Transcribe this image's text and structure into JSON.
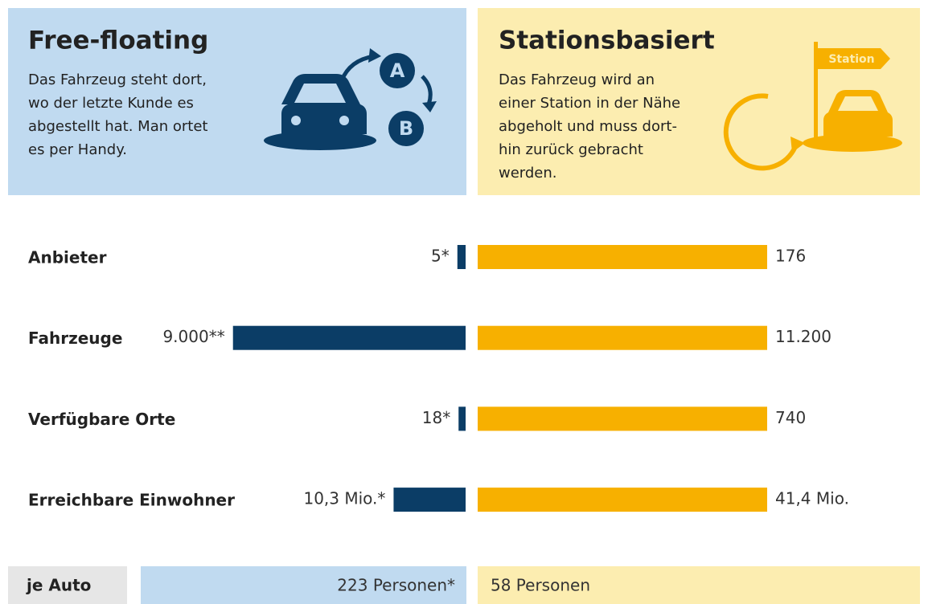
{
  "chart_data": {
    "type": "butterfly",
    "panels": [
      {
        "title": "Free-floating",
        "lines": [
          "Das Fahrzeug steht dort,",
          "wo der letzte Kunde es",
          "abgestellt hat. Man ortet",
          "es per Handy."
        ]
      },
      {
        "title": "Stationsbasiert",
        "lines": [
          "Das Fahrzeug wird an",
          "einer Station in der Nähe",
          "abgeholt und muss dort-",
          "hin zurück gebracht",
          "werden."
        ]
      }
    ],
    "icons": {
      "a": "A",
      "b": "B",
      "station": "Station"
    },
    "categories": [
      "Anbieter",
      "Fahrzeuge",
      "Verfügbare Orte",
      "Erreichbare Einwohner"
    ],
    "series": [
      {
        "name": "Free-floating",
        "color": "#0b3d66",
        "values": [
          5,
          9000,
          18,
          10.3
        ],
        "value_labels": [
          "5*",
          "9.000**",
          "18*",
          "10,3 Mio.*"
        ]
      },
      {
        "name": "Stationsbasiert",
        "color": "#f7b000",
        "values": [
          176,
          11200,
          740,
          41.4
        ],
        "value_labels": [
          "176",
          "11.200",
          "740",
          "41,4 Mio."
        ]
      }
    ],
    "per_car": {
      "label": "je Auto",
      "texts": [
        "223 Personen*",
        "58 Personen"
      ]
    }
  }
}
